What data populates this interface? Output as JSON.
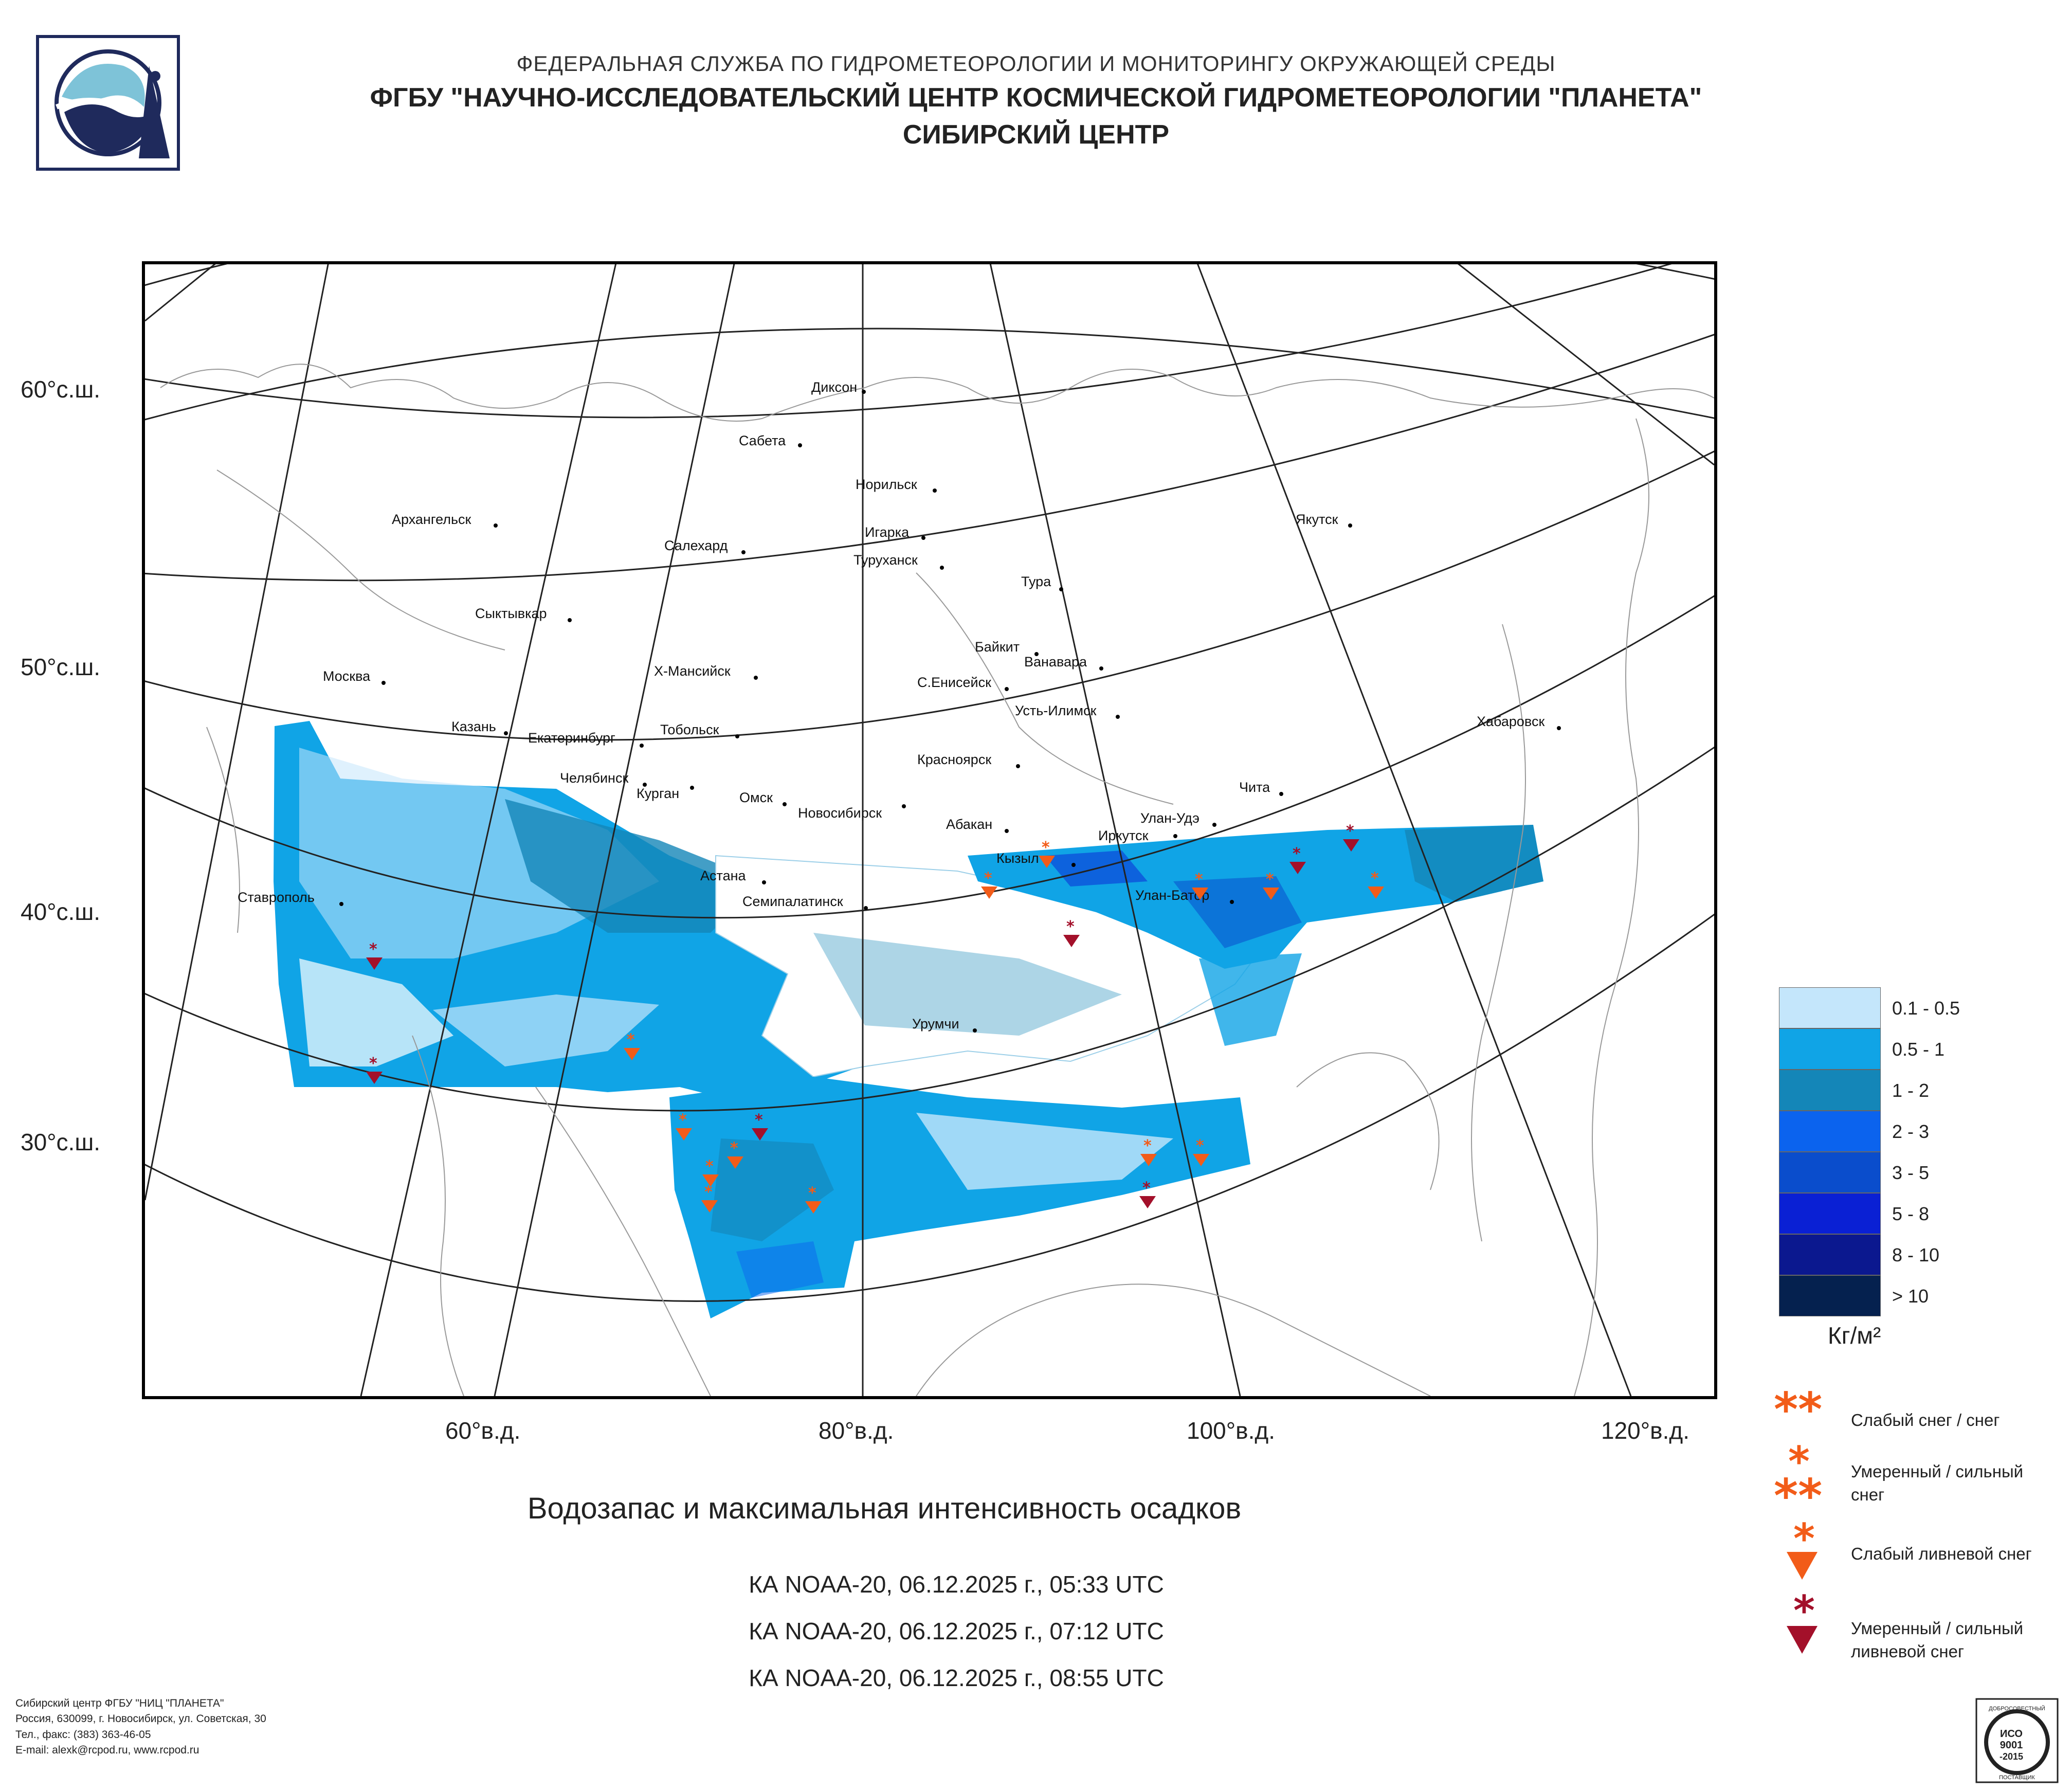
{
  "header": {
    "line1": "ФЕДЕРАЛЬНАЯ СЛУЖБА ПО ГИДРОМЕТЕОРОЛОГИИ И МОНИТОРИНГУ ОКРУЖАЮЩЕЙ СРЕДЫ",
    "line2": "ФГБУ \"НАУЧНО-ИССЛЕДОВАТЕЛЬСКИЙ ЦЕНТР КОСМИЧЕСКОЙ ГИДРОМЕТЕОРОЛОГИИ \"ПЛАНЕТА\"",
    "line3": "СИБИРСКИЙ ЦЕНТР"
  },
  "axes": {
    "lat_labels": [
      "60°с.ш.",
      "50°с.ш.",
      "40°с.ш.",
      "30°с.ш."
    ],
    "lon_labels": [
      "60°в.д.",
      "80°в.д.",
      "100°в.д.",
      "120°в.д."
    ]
  },
  "cities": [
    "Диксон",
    "Сабета",
    "Норильск",
    "Архангельск",
    "Якутск",
    "Игарка",
    "Салехард",
    "Туруханск",
    "Тура",
    "Сыктывкар",
    "Байкит",
    "Ванавара",
    "Х-Мансийск",
    "Москва",
    "С.Енисейск",
    "Усть-Илимск",
    "Хабаровск",
    "Казань",
    "Екатеринбург",
    "Тобольск",
    "Красноярск",
    "Челябинск",
    "Чита",
    "Курган",
    "Омск",
    "Новосибирск",
    "Абакан",
    "Улан-Удэ",
    "Иркутск",
    "Кызыл",
    "Астана",
    "Улан-Батор",
    "Ставрополь",
    "Семипалатинск",
    "Урумчи"
  ],
  "title": "Водозапас и максимальная интенсивность осадков",
  "passes": [
    "КА NOAA-20, 06.12.2025 г., 05:33 UTC",
    "КА NOAA-20, 06.12.2025 г., 07:12 UTC",
    "КА NOAA-20, 06.12.2025 г., 08:55 UTC"
  ],
  "legend": {
    "classes": [
      {
        "label": "0.1 - 0.5",
        "color": "#c4e6fb"
      },
      {
        "label": "0.5 - 1",
        "color": "#10a4e6"
      },
      {
        "label": "1 - 2",
        "color": "#1486b8"
      },
      {
        "label": "2 - 3",
        "color": "#0b63ee"
      },
      {
        "label": "3 - 5",
        "color": "#0a4dcc"
      },
      {
        "label": "5 - 8",
        "color": "#0a20d4"
      },
      {
        "label": "8 - 10",
        "color": "#0b188f"
      },
      {
        "label": "> 10",
        "color": "#05214f"
      }
    ],
    "unit": "Кг/м²"
  },
  "symbols": [
    {
      "label_lines": [
        "Слабый снег / снег"
      ],
      "icon": "double-orange-snowflake-icon",
      "color": "#f25c19"
    },
    {
      "label_lines": [
        "Умеренный / сильный",
        "снег"
      ],
      "icon": "triple-orange-snowflake-icon",
      "color": "#f25c19"
    },
    {
      "label_lines": [
        "Слабый ливневой снег"
      ],
      "icon": "orange-shower-snow-icon",
      "color": "#f25c19"
    },
    {
      "label_lines": [
        "Умеренный / сильный",
        "ливневой снег"
      ],
      "icon": "red-shower-snow-icon",
      "color": "#a3102a"
    }
  ],
  "footer": {
    "lines": [
      "Сибирский центр ФГБУ \"НИЦ \"ПЛАНЕТА\"",
      "Россия, 630099, г. Новосибирск, ул. Советская, 30",
      "Тел., факс: (383) 363-46-05",
      "E-mail: alexk@rcpod.ru, www.rcpod.ru"
    ]
  },
  "iso_badge": {
    "arc_text": "ДОБРОСОВЕСТНЫЙ",
    "line1": "ИСО",
    "line2": "9001",
    "line3": "-2015",
    "bottom": "ПОСТАВЩИК"
  }
}
